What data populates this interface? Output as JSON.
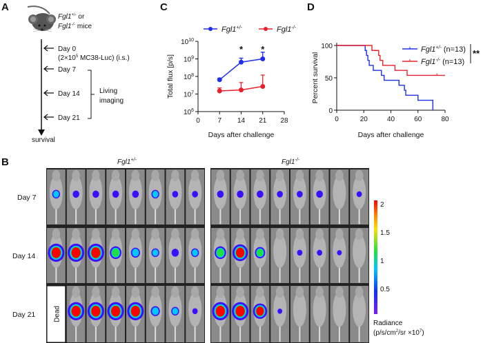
{
  "panels": {
    "A": {
      "label": "A",
      "mouse_line1_gene": "Fgl1",
      "mouse_line1_sup": "+/-",
      "mouse_line1_rest": " or",
      "mouse_line2_gene": "Fgl1",
      "mouse_line2_sup": "-/-",
      "mouse_line2_rest": " mice",
      "steps": [
        "Day 0",
        "Day 7",
        "Day 14",
        "Day 21"
      ],
      "day0_detail_pre": "(2×10",
      "day0_detail_sup": "5",
      "day0_detail_post": " MC38-Luc) (i.s.)",
      "bracket_label_1": "Living",
      "bracket_label_2": "imaging",
      "end_label": "survival"
    },
    "B": {
      "label": "B",
      "group_labels": [
        {
          "gene": "Fgl1",
          "sup": "+/-"
        },
        {
          "gene": "Fgl1",
          "sup": "-/-"
        }
      ],
      "row_labels": [
        "Day 7",
        "Day 14",
        "Day 21"
      ],
      "dead_label": "Dead",
      "signal_levels": {
        "het": [
          [
            0.6,
            0.4,
            0.4,
            0.4,
            0.4,
            0.6,
            0.3,
            0.3
          ],
          [
            2,
            2,
            2,
            1.2,
            0.8,
            0.6,
            0.5,
            0.6
          ],
          [
            null,
            2,
            2,
            2,
            2,
            0.8,
            0.6,
            0.2
          ]
        ],
        "ko": [
          [
            0.4,
            0.4,
            0.4,
            0.3,
            0.3,
            0.4,
            0,
            0.2
          ],
          [
            1.2,
            1.8,
            1,
            0,
            0.2,
            0.2,
            0.1,
            0
          ],
          [
            2,
            2,
            1.6,
            0.1,
            0,
            0,
            0,
            0
          ]
        ]
      },
      "colorbar": {
        "ticks": [
          "2",
          "1.5",
          "1",
          "0.5"
        ],
        "title": "Radiance",
        "unit_pre": "(p/s/cm",
        "unit_sup1": "2",
        "unit_mid": "/sr ×10",
        "unit_sup2": "7",
        "unit_post": ")",
        "range": [
          0,
          2
        ]
      }
    }
  },
  "chart_data": [
    {
      "panel": "C",
      "type": "line",
      "xlabel": "Days after challenge",
      "ylabel": "Total flux [p/s]",
      "xticks": [
        "0",
        "7",
        "14",
        "21",
        "28"
      ],
      "xlim": [
        0,
        28
      ],
      "yscale": "log",
      "ylim": [
        1000000.0,
        10000000000.0
      ],
      "yticks": [
        {
          "base": "10",
          "exp": "6"
        },
        {
          "base": "10",
          "exp": "7"
        },
        {
          "base": "10",
          "exp": "8"
        },
        {
          "base": "10",
          "exp": "9"
        },
        {
          "base": "10",
          "exp": "10"
        }
      ],
      "legend_position": "top",
      "series": [
        {
          "name_gene": "Fgl1",
          "name_sup": "+/-",
          "color": "#1f2ee8",
          "x": [
            7,
            14,
            21
          ],
          "y": [
            65000000.0,
            650000000.0,
            1000000000.0
          ],
          "err_upper": [
            80000000.0,
            1100000000.0,
            2400000000.0
          ]
        },
        {
          "name_gene": "Fgl1",
          "name_sup": "-/-",
          "color": "#e8202a",
          "x": [
            7,
            14,
            21
          ],
          "y": [
            15000000.0,
            17000000.0,
            27000000.0
          ],
          "err_upper": [
            22000000.0,
            45000000.0,
            120000000.0
          ]
        }
      ],
      "annotations": [
        {
          "x": 14,
          "text": "*"
        },
        {
          "x": 21,
          "text": "*"
        }
      ]
    },
    {
      "panel": "D",
      "type": "line",
      "step": true,
      "xlabel": "Days after challenge",
      "ylabel": "Percent survival",
      "xticks": [
        "0",
        "20",
        "40",
        "60",
        "80"
      ],
      "yticks": [
        "0",
        "50",
        "100"
      ],
      "xlim": [
        0,
        80
      ],
      "ylim": [
        0,
        100
      ],
      "legend_position": "top-right",
      "series": [
        {
          "name_gene": "Fgl1",
          "name_sup": "+/-",
          "name_rest": " (n=13)",
          "color": "#1f2ee8",
          "x": [
            0,
            21,
            22,
            23,
            24,
            27,
            33,
            35,
            46,
            50,
            51,
            60,
            71
          ],
          "y": [
            100,
            92.3,
            84.6,
            76.9,
            69.2,
            61.5,
            53.8,
            46.2,
            38.5,
            30.8,
            23.1,
            15.4,
            0
          ]
        },
        {
          "name_gene": "Fgl1",
          "name_sup": "-/-",
          "name_rest": " (n=13)",
          "color": "#e8202a",
          "x": [
            0,
            26,
            31,
            32,
            34,
            43,
            52,
            80
          ],
          "y": [
            100,
            92.3,
            84.6,
            76.9,
            69.2,
            61.5,
            53.8,
            53.8
          ],
          "censored": [
            74
          ]
        }
      ],
      "significance": "**"
    }
  ]
}
